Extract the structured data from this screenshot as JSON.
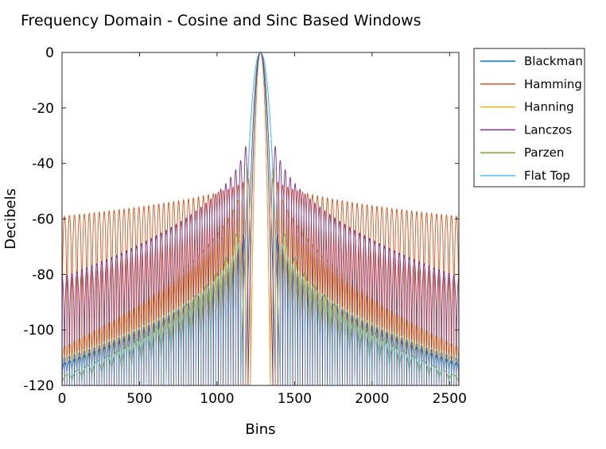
{
  "chart_data": {
    "type": "line",
    "title": "Frequency Domain - Cosine and Sinc Based Windows",
    "xlabel": "Bins",
    "ylabel": "Decibels",
    "xlim": [
      0,
      2560
    ],
    "ylim": [
      -120,
      0
    ],
    "xticks": [
      0,
      500,
      1000,
      1500,
      2000,
      2500
    ],
    "yticks": [
      0,
      -20,
      -40,
      -60,
      -80,
      -100,
      -120
    ],
    "grid": false,
    "legend_position": "outside-right-top",
    "center_bin": 1280,
    "series": [
      {
        "name": "Blackman",
        "color": "#0072BD",
        "mainlobe_halfwidth_bins": 96,
        "first_sidelobe_db": -58,
        "sidelobe_db_at_edges": -112,
        "null_depth_db": -120,
        "sidelobe_period_bins": 32
      },
      {
        "name": "Hamming",
        "color": "#D95319",
        "mainlobe_halfwidth_bins": 64,
        "first_sidelobe_db": -43,
        "sidelobe_db_at_edges": -59,
        "null_depth_db": -120,
        "sidelobe_period_bins": 32
      },
      {
        "name": "Hanning",
        "color": "#EDB120",
        "mainlobe_halfwidth_bins": 64,
        "first_sidelobe_db": -31,
        "sidelobe_db_at_edges": -106,
        "null_depth_db": -120,
        "sidelobe_period_bins": 32
      },
      {
        "name": "Lanczos",
        "color": "#7E2F8E",
        "mainlobe_halfwidth_bins": 80,
        "first_sidelobe_db": -26,
        "sidelobe_db_at_edges": -81,
        "null_depth_db": -120,
        "sidelobe_period_bins": 32
      },
      {
        "name": "Parzen",
        "color": "#77AC30",
        "mainlobe_halfwidth_bins": 128,
        "first_sidelobe_db": -53,
        "sidelobe_db_at_edges": -117,
        "null_depth_db": -120,
        "sidelobe_period_bins": 64
      },
      {
        "name": "Flat Top",
        "color": "#4DBEEE",
        "mainlobe_halfwidth_bins": 128,
        "first_sidelobe_db": -62,
        "sidelobe_db_at_edges": -110,
        "null_depth_db": -120,
        "sidelobe_period_bins": 32
      }
    ]
  }
}
